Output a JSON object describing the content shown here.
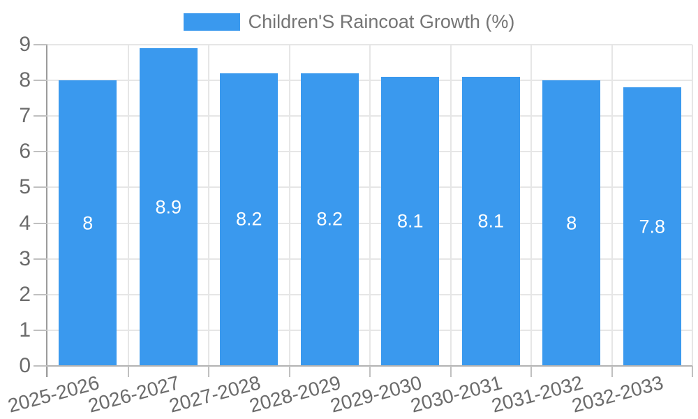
{
  "legend": {
    "label": "Children'S Raincoat Growth (%)"
  },
  "chart_data": {
    "type": "bar",
    "title": "",
    "legend_entries": [
      "Children'S Raincoat Growth (%)"
    ],
    "legend_position": "top-center",
    "categories": [
      "2025-2026",
      "2026-2027",
      "2027-2028",
      "2028-2029",
      "2029-2030",
      "2030-2031",
      "2031-2032",
      "2032-2033"
    ],
    "series": [
      {
        "name": "Children'S Raincoat Growth (%)",
        "values": [
          8,
          8.9,
          8.2,
          8.2,
          8.1,
          8.1,
          8,
          7.8
        ],
        "labels": [
          "8",
          "8.9",
          "8.2",
          "8.2",
          "8.1",
          "8.1",
          "8",
          "7.8"
        ],
        "color": "#3a99ee"
      }
    ],
    "xlabel": "",
    "ylabel": "",
    "ylim": [
      0,
      9
    ],
    "yticks": [
      0,
      1,
      2,
      3,
      4,
      5,
      6,
      7,
      8,
      9
    ],
    "grid": true,
    "x_label_rotation_deg": -15,
    "value_labels_inside_bars": true
  },
  "colors": {
    "bar": "#3a99ee",
    "grid": "#e6e6e6",
    "axis_y": "#9b9b9b",
    "axis_x": "#b3b3b3",
    "tick": "#c0c0c0",
    "tick_label": "#6b6b6b",
    "legend_text": "#757575",
    "value_label": "#ffffff",
    "background": "#ffffff"
  }
}
